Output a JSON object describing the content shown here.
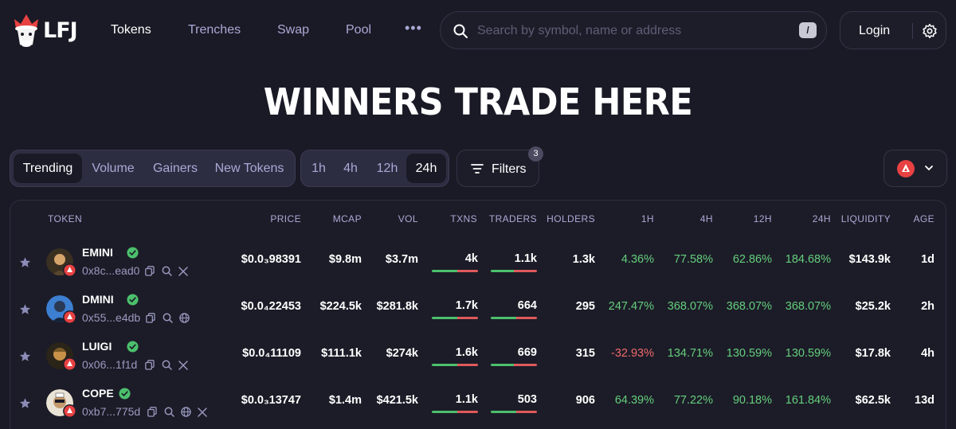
{
  "brand": {
    "logo_text": "LFJ"
  },
  "nav": {
    "tokens": "Tokens",
    "trenches": "Trenches",
    "swap": "Swap",
    "pool": "Pool",
    "more": "•••"
  },
  "search": {
    "placeholder": "Search by symbol, name or address",
    "shortcut": "/"
  },
  "header": {
    "login": "Login"
  },
  "hero": {
    "title": "WINNERS TRADE HERE"
  },
  "sort_tabs": {
    "trending": "Trending",
    "volume": "Volume",
    "gainers": "Gainers",
    "new_tokens": "New Tokens",
    "selected": "Trending"
  },
  "time_tabs": {
    "h1": "1h",
    "h4": "4h",
    "h12": "12h",
    "h24": "24h",
    "selected": "24h"
  },
  "filters": {
    "label": "Filters",
    "count": "3"
  },
  "chain_selector": {
    "chain": "Avalanche",
    "color": "#e84142"
  },
  "table": {
    "headers": {
      "token": "TOKEN",
      "price": "PRICE",
      "mcap": "MCAP",
      "vol": "VOL",
      "txns": "TXNS",
      "traders": "TRADERS",
      "holders": "HOLDERS",
      "h1": "1H",
      "h4": "4H",
      "h12": "12H",
      "h24": "24H",
      "liquidity": "LIQUIDITY",
      "age": "AGE"
    },
    "rows": [
      {
        "name": "EMINI",
        "address": "0x8c...ead0",
        "price": "$0.0₃98391",
        "mcap": "$9.8m",
        "vol": "$3.7m",
        "txns": "4k",
        "txns_buy_fraction": 0.55,
        "traders": "1.1k",
        "traders_buy_fraction": 0.5,
        "holders": "1.3k",
        "h1": "4.36%",
        "h4": "77.58%",
        "h12": "62.86%",
        "h24": "184.68%",
        "liquidity": "$143.9k",
        "age": "1d",
        "links": [
          "copy-icon",
          "search-icon",
          "x-icon"
        ]
      },
      {
        "name": "DMINI",
        "address": "0x55...e4db",
        "price": "$0.0₄22453",
        "mcap": "$224.5k",
        "vol": "$281.8k",
        "txns": "1.7k",
        "txns_buy_fraction": 0.55,
        "traders": "664",
        "traders_buy_fraction": 0.55,
        "holders": "295",
        "h1": "247.47%",
        "h4": "368.07%",
        "h12": "368.07%",
        "h24": "368.07%",
        "liquidity": "$25.2k",
        "age": "2h",
        "links": [
          "copy-icon",
          "search-icon",
          "globe-icon"
        ]
      },
      {
        "name": "LUIGI",
        "address": "0x06...1f1d",
        "price": "$0.0₄11109",
        "mcap": "$111.1k",
        "vol": "$274k",
        "txns": "1.6k",
        "txns_buy_fraction": 0.55,
        "traders": "669",
        "traders_buy_fraction": 0.5,
        "holders": "315",
        "h1": "-32.93%",
        "h4": "134.71%",
        "h12": "130.59%",
        "h24": "130.59%",
        "liquidity": "$17.8k",
        "age": "4h",
        "links": [
          "copy-icon",
          "search-icon",
          "x-icon"
        ]
      },
      {
        "name": "COPE",
        "address": "0xb7...775d",
        "price": "$0.0₃13747",
        "mcap": "$1.4m",
        "vol": "$421.5k",
        "txns": "1.1k",
        "txns_buy_fraction": 0.55,
        "traders": "503",
        "traders_buy_fraction": 0.55,
        "holders": "906",
        "h1": "64.39%",
        "h4": "77.22%",
        "h12": "90.18%",
        "h24": "161.84%",
        "liquidity": "$62.5k",
        "age": "13d",
        "links": [
          "copy-icon",
          "search-icon",
          "globe-icon",
          "x-icon"
        ]
      }
    ]
  },
  "colors": {
    "background": "#1a1a26",
    "positive": "#64cf7c",
    "negative": "#ef6a6a",
    "muted": "#a9a9d6"
  }
}
